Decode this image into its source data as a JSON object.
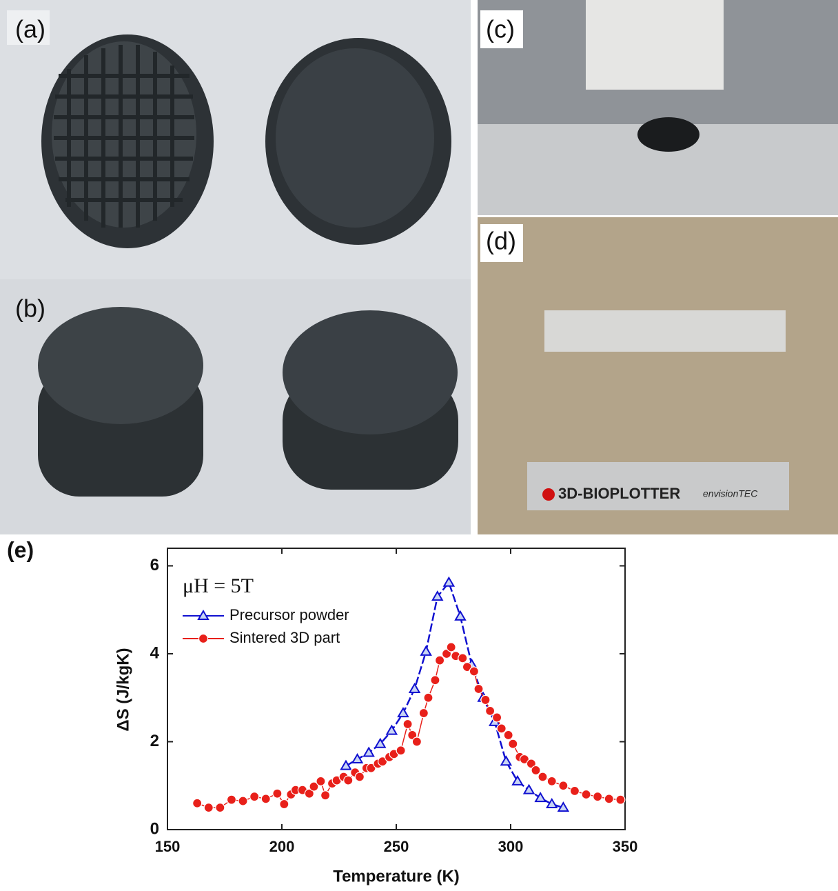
{
  "panel_labels": [
    "(a)",
    "(b)",
    "(c)",
    "(d)"
  ],
  "photo_text": [
    "3D-BIOPLOTTER",
    "envisionTEC"
  ],
  "chart_data": {
    "type": "line",
    "panel_label": "(e)",
    "annotation": "μH = 5T",
    "x_label": "Temperature (K)",
    "y_label": "ΔS (J/kgK)",
    "xlim": [
      150,
      350
    ],
    "xticks": [
      150,
      200,
      250,
      300,
      350
    ],
    "ylim": [
      0,
      6.4
    ],
    "yticks": [
      0,
      2,
      4,
      6
    ],
    "legend": "upper left",
    "series": [
      {
        "name": "Precursor powder",
        "color": "#1010d0",
        "marker": "triangle",
        "x": [
          228,
          233,
          238,
          243,
          248,
          253,
          258,
          263,
          268,
          273,
          278,
          283,
          288,
          293,
          298,
          303,
          308,
          313,
          318,
          323
        ],
        "values": [
          1.45,
          1.6,
          1.75,
          1.95,
          2.25,
          2.65,
          3.2,
          4.05,
          5.3,
          5.62,
          4.85,
          3.75,
          3.0,
          2.45,
          1.55,
          1.1,
          0.9,
          0.72,
          0.58,
          0.5
        ]
      },
      {
        "name": "Sintered 3D part",
        "color": "#e8201a",
        "marker": "circle",
        "x": [
          163,
          168,
          173,
          178,
          183,
          188,
          193,
          198,
          201,
          204,
          206,
          209,
          212,
          214,
          217,
          219,
          222,
          224,
          227,
          229,
          232,
          234,
          237,
          239,
          242,
          244,
          247,
          249,
          252,
          255,
          257,
          259,
          262,
          264,
          267,
          269,
          272,
          274,
          276,
          279,
          281,
          284,
          286,
          289,
          291,
          294,
          296,
          299,
          301,
          304,
          306,
          309,
          311,
          314,
          318,
          323,
          328,
          333,
          338,
          343,
          348
        ],
        "values": [
          0.6,
          0.5,
          0.5,
          0.68,
          0.65,
          0.75,
          0.7,
          0.82,
          0.58,
          0.8,
          0.9,
          0.9,
          0.82,
          0.98,
          1.1,
          0.78,
          1.05,
          1.12,
          1.2,
          1.12,
          1.3,
          1.2,
          1.4,
          1.4,
          1.5,
          1.55,
          1.65,
          1.72,
          1.8,
          2.4,
          2.15,
          2.0,
          2.65,
          3.0,
          3.4,
          3.85,
          4.0,
          4.15,
          3.95,
          3.9,
          3.7,
          3.6,
          3.2,
          2.95,
          2.7,
          2.55,
          2.3,
          2.15,
          1.95,
          1.65,
          1.6,
          1.5,
          1.35,
          1.2,
          1.1,
          1.0,
          0.88,
          0.8,
          0.75,
          0.7,
          0.68
        ]
      }
    ]
  }
}
